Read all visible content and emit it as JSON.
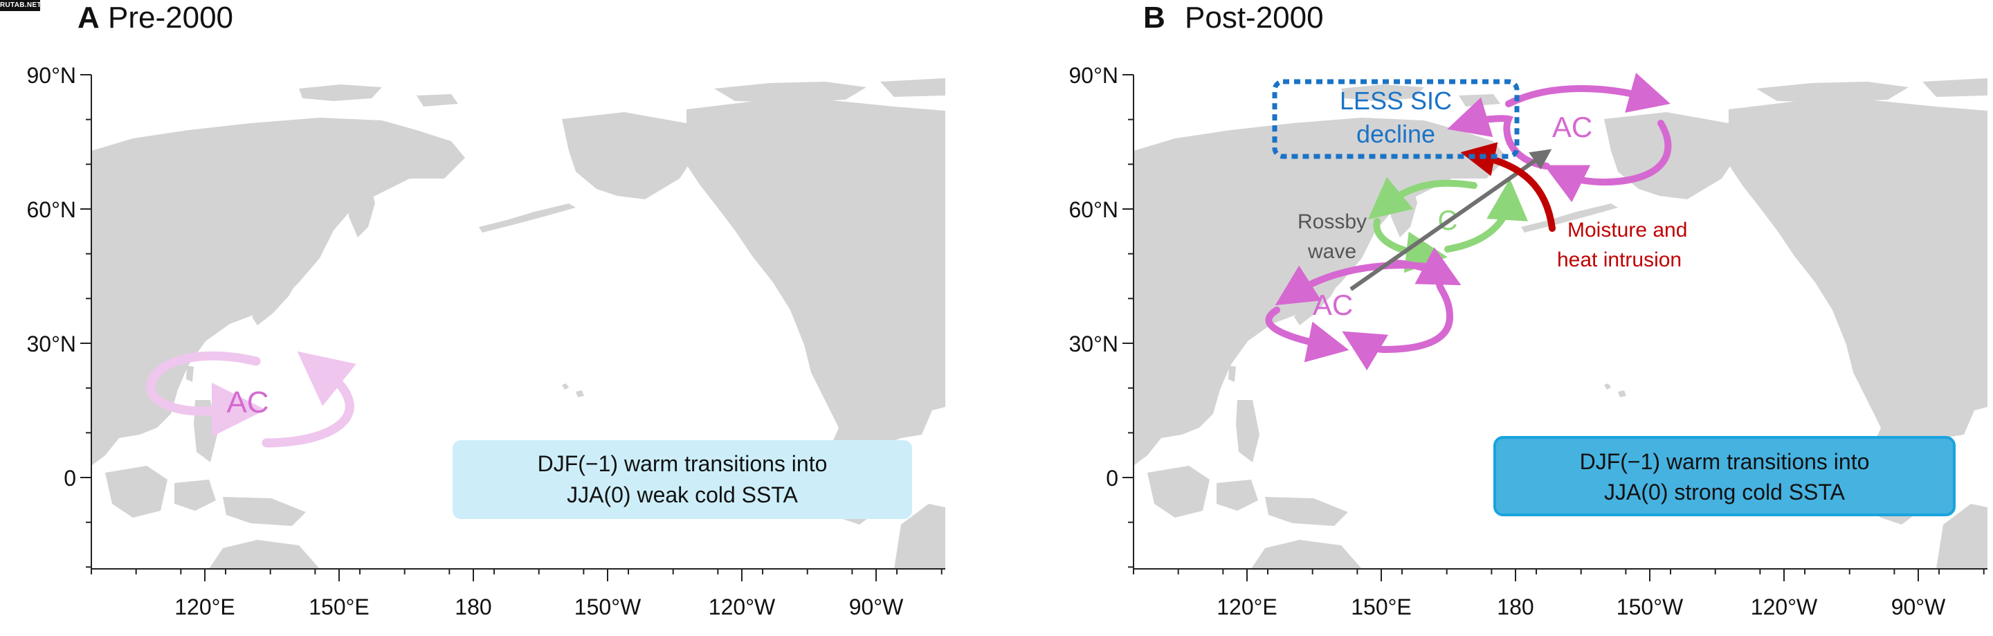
{
  "watermark": "RUTAB.NET",
  "panels": [
    {
      "letter": "A",
      "title": "Pre-2000",
      "circulations": [
        {
          "label": "AC",
          "kind": "anticyclone",
          "faded": true
        }
      ],
      "info_box": {
        "line1": "DJF(−1) warm transitions into",
        "line2": "JJA(0) weak cold SSTA"
      }
    },
    {
      "letter": "B",
      "title": "Post-2000",
      "circulations": [
        {
          "label": "AC",
          "kind": "anticyclone-arctic"
        },
        {
          "label": "C",
          "kind": "cyclone"
        },
        {
          "label": "AC",
          "kind": "anticyclone-midlat"
        }
      ],
      "annotations": {
        "sic_line1": "LESS SIC",
        "sic_line2": "decline",
        "rossby_line1": "Rossby",
        "rossby_line2": "wave",
        "moisture_line1": "Moisture and",
        "moisture_line2": "heat intrusion"
      },
      "info_box": {
        "line1": "DJF(−1) warm transitions into",
        "line2": "JJA(0) strong cold SSTA"
      }
    }
  ],
  "axes": {
    "y_ticks": [
      "90°N",
      "60°N",
      "30°N",
      "0"
    ],
    "x_ticks": [
      "120°E",
      "150°E",
      "180",
      "150°W",
      "120°W",
      "90°W"
    ]
  },
  "colors": {
    "land": "#d3d3d3",
    "ocean": "#ffffff",
    "ac_arrow": "#d668d2",
    "ac_arrow_faded": "#efc6ee",
    "ac_text_faded": "#d36bd0",
    "c_arrow": "#8ed67a",
    "rossby_arrow": "#707070",
    "moisture_arrow": "#c00000",
    "sic_box": "#1a73c6",
    "info_box_weak": "#cdeef9",
    "info_box_strong": "#46b2e0",
    "info_box_strong_border": "#1aa3de"
  }
}
